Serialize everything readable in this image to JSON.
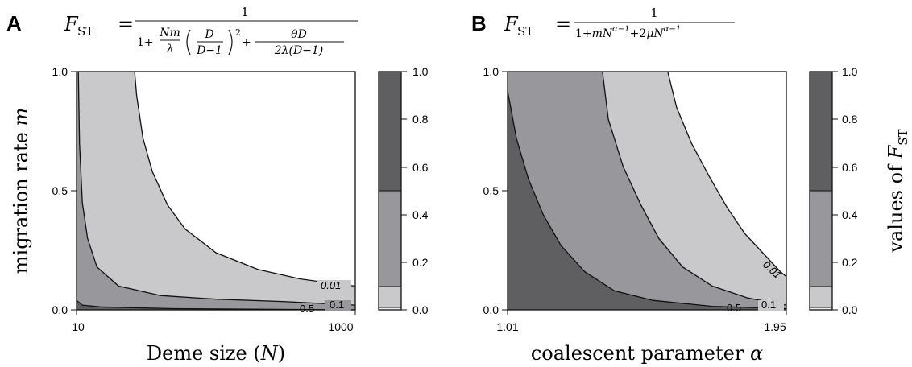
{
  "colors": {
    "dark": "#5f5f62",
    "mid": "#98989c",
    "light": "#c9c9cb",
    "lightest": "#ececed",
    "line": "#111111"
  },
  "legend": {
    "title": "values of F_ST",
    "title_main": "values of ",
    "title_var": "F",
    "title_sub": "ST",
    "ticks": [
      "1.0",
      "0.8",
      "0.6",
      "0.4",
      "0.2",
      "0.0"
    ]
  },
  "chart_data": [
    {
      "type": "heatmap",
      "panel_label": "A",
      "formula": {
        "lhs_var": "F",
        "lhs_sub": "ST",
        "equals": "=",
        "numerator": "1",
        "den_one": "1+",
        "den_nm_num": "Nm",
        "den_nm_den": "λ",
        "den_d_num": "D",
        "den_d_den": "D−1",
        "den_sq": "2",
        "den_plus": "+",
        "den_theta_num": "θD",
        "den_theta_den": "2λ(D−1)"
      },
      "xlabel": "Deme size (N)",
      "xlabel_main": "Deme size (",
      "xlabel_var": "N",
      "xlabel_end": ")",
      "ylabel": "migration rate m",
      "ylabel_main": "migration rate ",
      "ylabel_var": "m",
      "x_ticks": [
        "10",
        "1000"
      ],
      "y_ticks": [
        "0.0",
        "0.5",
        "1.0"
      ],
      "xlim": [
        10,
        1000
      ],
      "ylim": [
        0,
        1
      ],
      "x_scale": "log",
      "contour_labels": [
        "0.01",
        "0.1",
        "0.5"
      ],
      "contour_levels": [
        0.01,
        0.1,
        0.5
      ],
      "contours": [
        {
          "level": 0.01,
          "points": [
            [
              26.1,
              1.0
            ],
            [
              27,
              0.9
            ],
            [
              30,
              0.72
            ],
            [
              35,
              0.58
            ],
            [
              45,
              0.44
            ],
            [
              60,
              0.34
            ],
            [
              100,
              0.24
            ],
            [
              200,
              0.17
            ],
            [
              400,
              0.13
            ],
            [
              700,
              0.11
            ],
            [
              1000,
              0.1
            ]
          ]
        },
        {
          "level": 0.1,
          "points": [
            [
              10.3,
              1.0
            ],
            [
              10.5,
              0.7
            ],
            [
              11,
              0.45
            ],
            [
              12,
              0.3
            ],
            [
              14,
              0.18
            ],
            [
              20,
              0.1
            ],
            [
              40,
              0.06
            ],
            [
              100,
              0.045
            ],
            [
              300,
              0.035
            ],
            [
              1000,
              0.02
            ]
          ]
        },
        {
          "level": 0.5,
          "points": [
            [
              10,
              0.04
            ],
            [
              11,
              0.02
            ],
            [
              15,
              0.012
            ],
            [
              50,
              0.005
            ],
            [
              1000,
              0.0
            ]
          ]
        }
      ]
    },
    {
      "type": "heatmap",
      "panel_label": "B",
      "formula": {
        "lhs_var": "F",
        "lhs_sub": "ST",
        "equals": "=",
        "numerator": "1",
        "den_a": "1+",
        "den_m": "m",
        "den_N1": "N",
        "den_exp1": "α−1",
        "den_b": "+2",
        "den_mu": "μ",
        "den_N2": "N",
        "den_exp2": "α−1"
      },
      "xlabel": "coalescent parameter α",
      "xlabel_main": "coalescent parameter ",
      "xlabel_var": "α",
      "ylabel": "",
      "x_ticks": [
        "1.01",
        "1.95"
      ],
      "y_ticks": [
        "0.0",
        "0.5",
        "1.0"
      ],
      "xlim": [
        1.01,
        1.95
      ],
      "ylim": [
        0,
        1
      ],
      "contour_labels": [
        "0.01",
        "0.1",
        "0.5"
      ],
      "contour_levels": [
        0.01,
        0.1,
        0.5
      ],
      "contours": [
        {
          "level": 0.01,
          "points": [
            [
              1.55,
              1.0
            ],
            [
              1.58,
              0.85
            ],
            [
              1.63,
              0.7
            ],
            [
              1.69,
              0.56
            ],
            [
              1.75,
              0.43
            ],
            [
              1.81,
              0.32
            ],
            [
              1.87,
              0.24
            ],
            [
              1.93,
              0.16
            ],
            [
              1.95,
              0.14
            ]
          ]
        },
        {
          "level": 0.1,
          "points": [
            [
              1.33,
              1.0
            ],
            [
              1.35,
              0.8
            ],
            [
              1.4,
              0.6
            ],
            [
              1.46,
              0.44
            ],
            [
              1.52,
              0.3
            ],
            [
              1.6,
              0.18
            ],
            [
              1.7,
              0.1
            ],
            [
              1.82,
              0.05
            ],
            [
              1.95,
              0.02
            ]
          ]
        },
        {
          "level": 0.5,
          "points": [
            [
              1.01,
              0.92
            ],
            [
              1.04,
              0.72
            ],
            [
              1.08,
              0.55
            ],
            [
              1.13,
              0.4
            ],
            [
              1.19,
              0.27
            ],
            [
              1.27,
              0.16
            ],
            [
              1.37,
              0.08
            ],
            [
              1.5,
              0.04
            ],
            [
              1.7,
              0.015
            ],
            [
              1.95,
              0.005
            ]
          ]
        }
      ]
    }
  ]
}
